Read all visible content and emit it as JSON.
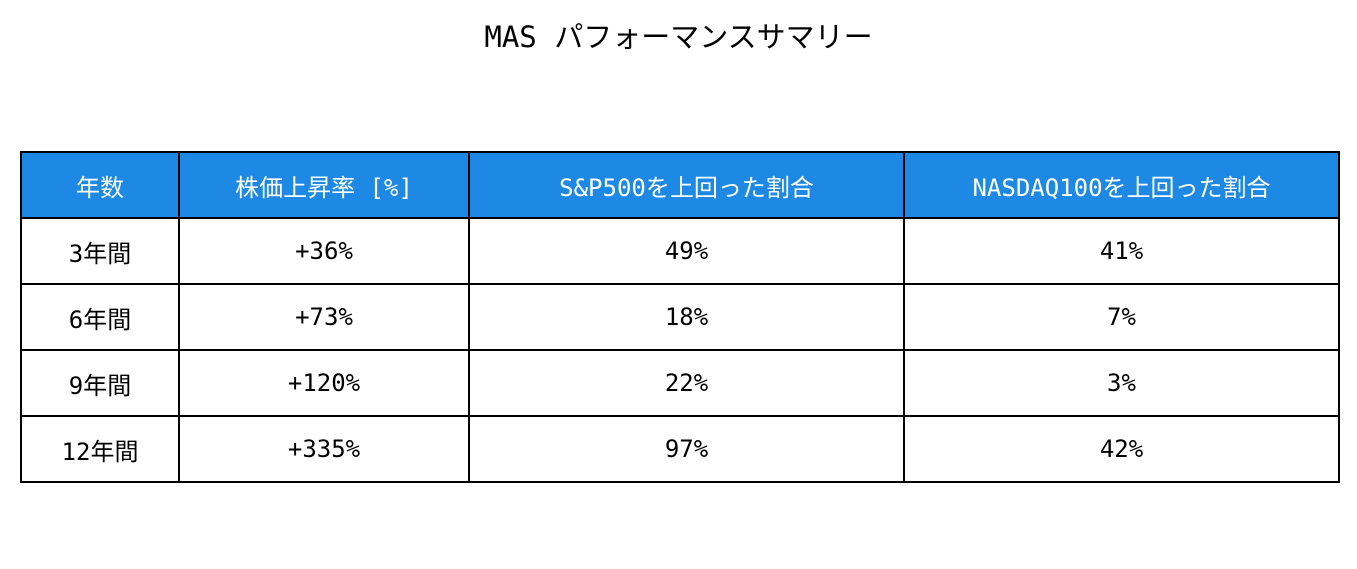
{
  "title": "MAS パフォーマンスサマリー",
  "table": {
    "header": [
      "年数",
      "株価上昇率 [%]",
      "S&P500を上回った割合",
      "NASDAQ100を上回った割合"
    ],
    "rows": [
      [
        "3年間",
        "+36%",
        "49%",
        "41%"
      ],
      [
        "6年間",
        "+73%",
        "18%",
        "7%"
      ],
      [
        "9年間",
        "+120%",
        "22%",
        "3%"
      ],
      [
        "12年間",
        "+335%",
        "97%",
        "42%"
      ]
    ]
  }
}
